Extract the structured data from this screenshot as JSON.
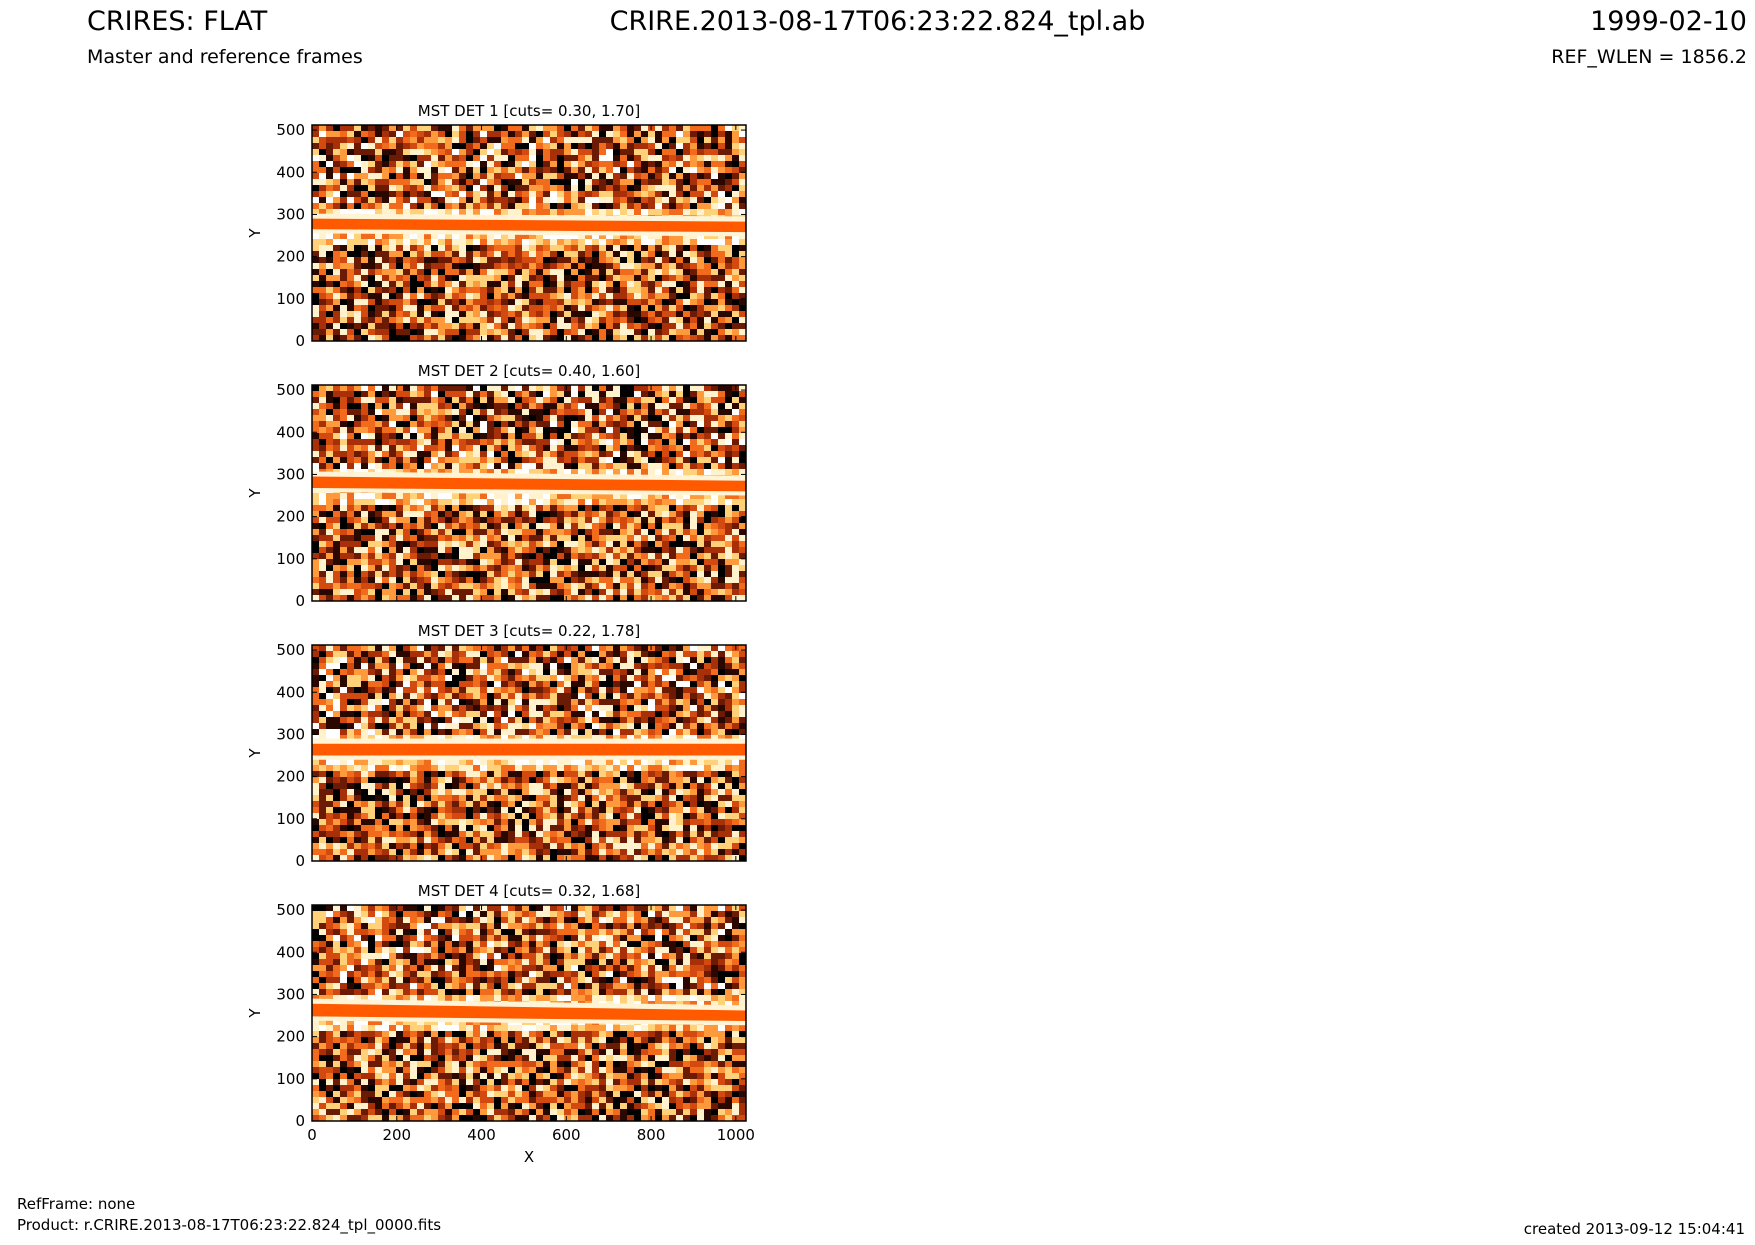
{
  "header": {
    "title_left": "CRIRES: FLAT",
    "title_center": "CRIRE.2013-08-17T06:23:22.824_tpl.ab",
    "title_right": "1999-02-10",
    "subtitle_left": "Master and reference frames",
    "subtitle_right": "REF_WLEN = 1856.2"
  },
  "footer": {
    "refframe": "RefFrame: none",
    "product": "Product: r.CRIRE.2013-08-17T06:23:22.824_tpl_0000.fits",
    "created": "created 2013-09-12 15:04:41"
  },
  "colors": {
    "band": "#ff5a00",
    "noise_palette": [
      "#ffffff",
      "#fff2cc",
      "#ffd27a",
      "#ff9a3c",
      "#f26a1b",
      "#d24a10",
      "#a83008",
      "#6b1a04",
      "#2a0800",
      "#000000"
    ]
  },
  "chart_data": [
    {
      "type": "heatmap",
      "title": "MST DET 1 [cuts= 0.30, 1.70]",
      "xlabel": "",
      "ylabel": "Y",
      "xlim": [
        0,
        1024
      ],
      "ylim": [
        0,
        512
      ],
      "xticks": [],
      "yticks": [
        0,
        100,
        200,
        300,
        400,
        500
      ],
      "band": {
        "y_left": [
          265,
          290
        ],
        "y_right": [
          258,
          283
        ]
      }
    },
    {
      "type": "heatmap",
      "title": "MST DET 2 [cuts= 0.40, 1.60]",
      "xlabel": "",
      "ylabel": "Y",
      "xlim": [
        0,
        1024
      ],
      "ylim": [
        0,
        512
      ],
      "xticks": [],
      "yticks": [
        0,
        100,
        200,
        300,
        400,
        500
      ],
      "band": {
        "y_left": [
          268,
          295
        ],
        "y_right": [
          260,
          285
        ]
      }
    },
    {
      "type": "heatmap",
      "title": "MST DET 3 [cuts= 0.22, 1.78]",
      "xlabel": "",
      "ylabel": "Y",
      "xlim": [
        0,
        1024
      ],
      "ylim": [
        0,
        512
      ],
      "xticks": [],
      "yticks": [
        0,
        100,
        200,
        300,
        400,
        500
      ],
      "band": {
        "y_left": [
          250,
          278
        ],
        "y_right": [
          250,
          278
        ]
      }
    },
    {
      "type": "heatmap",
      "title": "MST DET 4 [cuts= 0.32, 1.68]",
      "xlabel": "X",
      "ylabel": "Y",
      "xlim": [
        0,
        1024
      ],
      "ylim": [
        0,
        512
      ],
      "xticks": [
        0,
        200,
        400,
        600,
        800,
        1000
      ],
      "yticks": [
        0,
        100,
        200,
        300,
        400,
        500
      ],
      "band": {
        "y_left": [
          248,
          278
        ],
        "y_right": [
          237,
          262
        ]
      }
    }
  ]
}
